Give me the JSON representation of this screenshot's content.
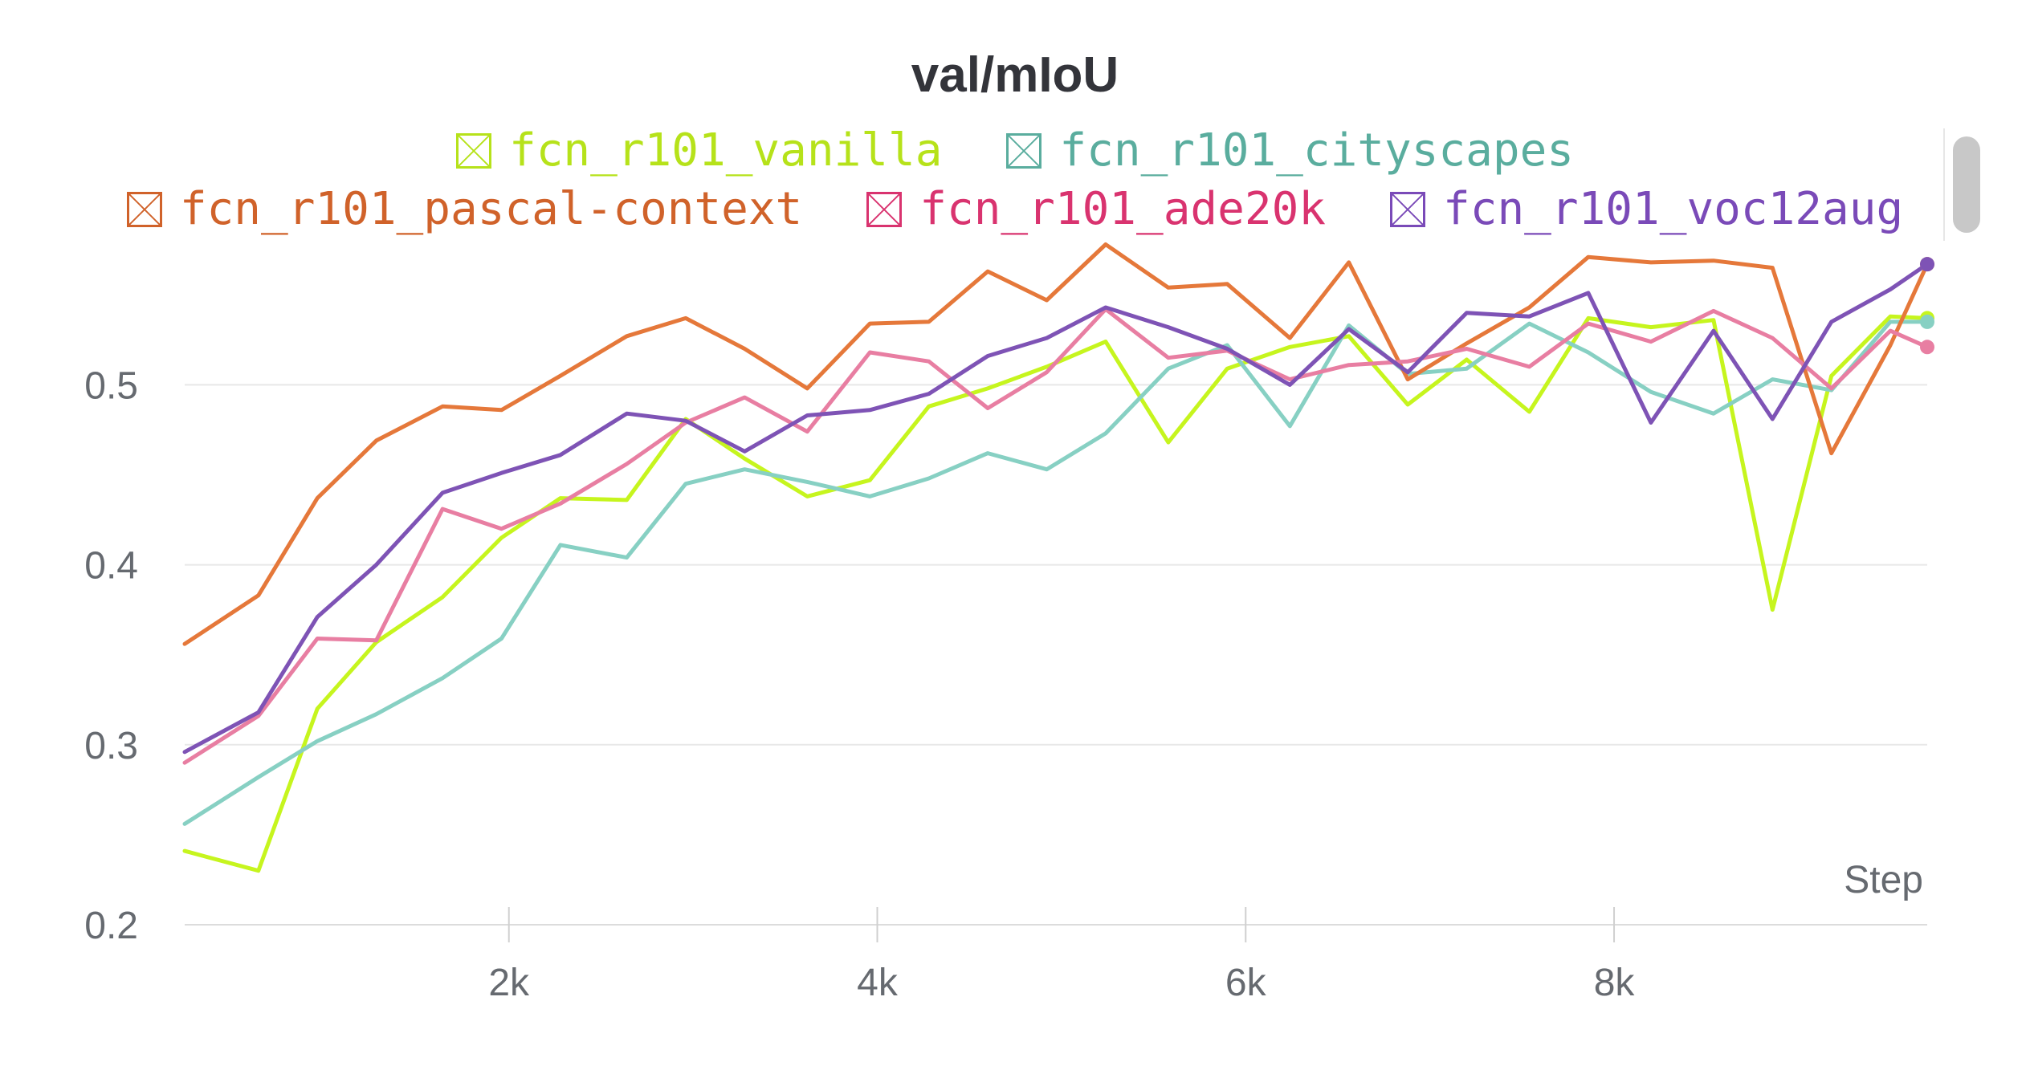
{
  "chart_data": {
    "type": "line",
    "title": "val/mIoU",
    "xlabel": "Step",
    "ylabel": "",
    "xlim": [
      240,
      9700
    ],
    "ylim": [
      0.2,
      0.58
    ],
    "yticks": [
      0.2,
      0.3,
      0.4,
      0.5
    ],
    "ytick_labels": [
      "0.2",
      "0.3",
      "0.4",
      "0.5"
    ],
    "xticks": [
      2000,
      4000,
      6000,
      8000
    ],
    "xtick_labels": [
      "2k",
      "4k",
      "6k",
      "8k"
    ],
    "grid": true,
    "legend_position": "top",
    "x": [
      240,
      640,
      960,
      1280,
      1640,
      1960,
      2280,
      2640,
      2960,
      3280,
      3620,
      3960,
      4280,
      4600,
      4920,
      5240,
      5580,
      5900,
      6240,
      6560,
      6880,
      7200,
      7540,
      7860,
      8200,
      8540,
      8860,
      9180,
      9500,
      9700
    ],
    "series": [
      {
        "name": "fcn_r101_vanilla",
        "color": "#c6f51e",
        "legend_color": "#b6e21a",
        "values": [
          0.241,
          0.23,
          0.32,
          0.357,
          0.382,
          0.415,
          0.437,
          0.436,
          0.481,
          0.459,
          0.438,
          0.447,
          0.488,
          0.498,
          0.51,
          0.524,
          0.468,
          0.509,
          0.521,
          0.527,
          0.489,
          0.514,
          0.485,
          0.537,
          0.532,
          0.536,
          0.375,
          0.505,
          0.538,
          0.537
        ]
      },
      {
        "name": "fcn_r101_cityscapes",
        "color": "#87d0c3",
        "legend_color": "#5aad9e",
        "values": [
          0.256,
          0.282,
          0.302,
          0.317,
          0.337,
          0.359,
          0.411,
          0.404,
          0.445,
          0.453,
          0.446,
          0.438,
          0.448,
          0.462,
          0.453,
          0.473,
          0.509,
          0.522,
          0.477,
          0.533,
          0.506,
          0.509,
          0.534,
          0.518,
          0.496,
          0.484,
          0.503,
          0.497,
          0.535,
          0.535
        ]
      },
      {
        "name": "fcn_r101_pascal-context",
        "color": "#e5783a",
        "legend_color": "#d0622a",
        "values": [
          0.356,
          0.383,
          0.437,
          0.469,
          0.488,
          0.486,
          0.505,
          0.527,
          0.537,
          0.52,
          0.498,
          0.534,
          0.535,
          0.563,
          0.547,
          0.578,
          0.554,
          0.556,
          0.526,
          0.568,
          0.503,
          0.523,
          0.543,
          0.571,
          0.568,
          0.569,
          0.565,
          0.462,
          0.522,
          0.567
        ]
      },
      {
        "name": "fcn_r101_ade20k",
        "color": "#e87ea2",
        "legend_color": "#d9336f",
        "values": [
          0.29,
          0.316,
          0.359,
          0.358,
          0.431,
          0.42,
          0.434,
          0.456,
          0.479,
          0.493,
          0.474,
          0.518,
          0.513,
          0.487,
          0.507,
          0.542,
          0.515,
          0.519,
          0.503,
          0.511,
          0.513,
          0.52,
          0.51,
          0.534,
          0.524,
          0.541,
          0.526,
          0.498,
          0.53,
          0.521
        ]
      },
      {
        "name": "fcn_r101_voc12aug",
        "color": "#7e53b5",
        "legend_color": "#7a4ab8",
        "values": [
          0.296,
          0.318,
          0.371,
          0.4,
          0.44,
          0.451,
          0.461,
          0.484,
          0.48,
          0.463,
          0.483,
          0.486,
          0.495,
          0.516,
          0.526,
          0.543,
          0.532,
          0.52,
          0.5,
          0.531,
          0.507,
          0.54,
          0.538,
          0.551,
          0.479,
          0.53,
          0.481,
          0.535,
          0.553,
          0.567
        ]
      }
    ]
  }
}
